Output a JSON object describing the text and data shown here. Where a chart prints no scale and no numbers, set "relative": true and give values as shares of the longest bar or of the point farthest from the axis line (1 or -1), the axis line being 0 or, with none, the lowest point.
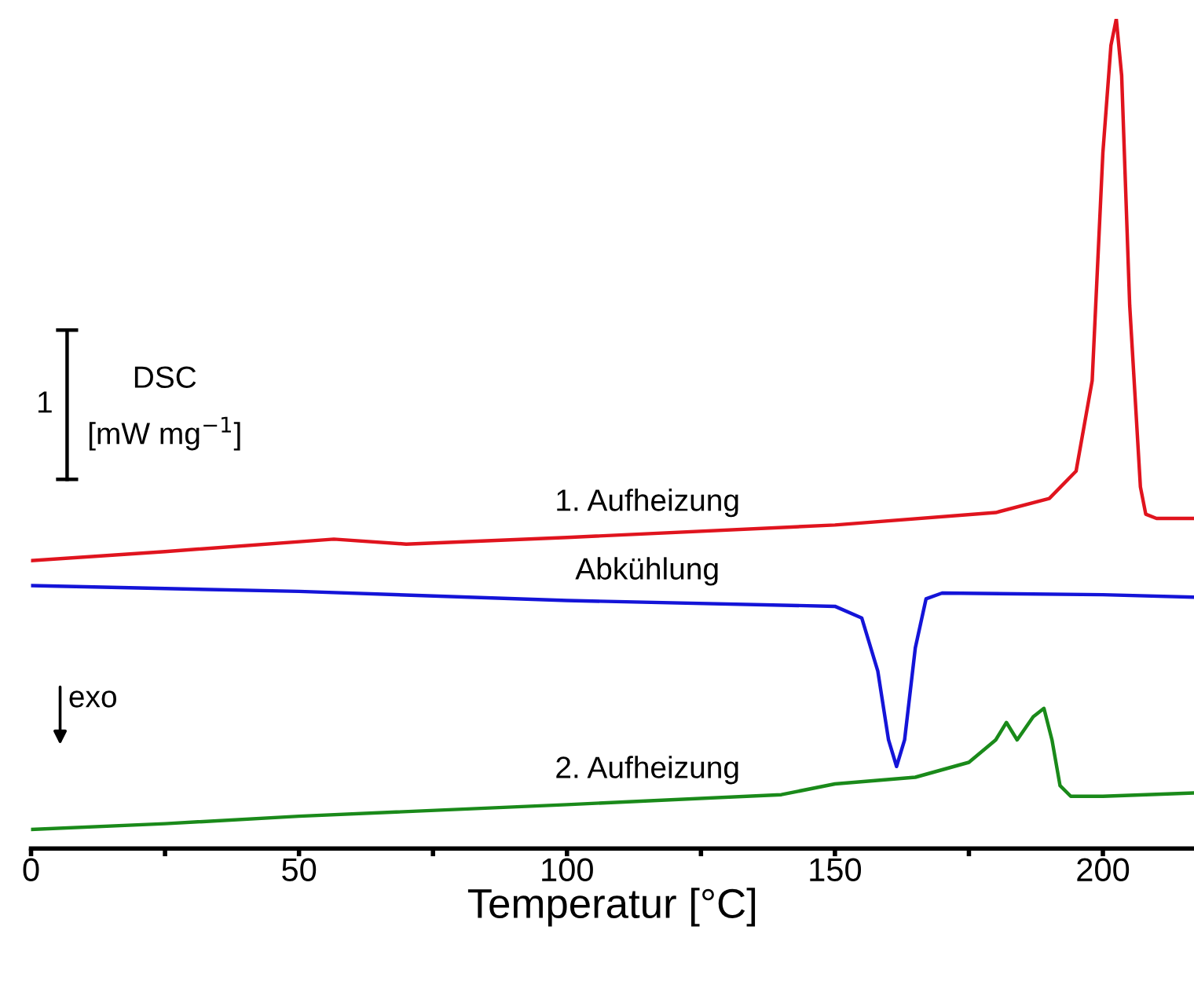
{
  "chart_data": {
    "type": "line",
    "relative": true,
    "xlabel": "Temperatur [°C]",
    "xlim": [
      0,
      217
    ],
    "xticks": [
      0,
      {
        "value": 25,
        "label": null
      },
      50,
      {
        "value": 75,
        "label": null
      },
      100,
      {
        "value": 125,
        "label": null
      },
      150,
      {
        "value": 175,
        "label": null
      },
      200
    ],
    "series": [
      {
        "name": "1. Aufheizung",
        "color": "#e0141e",
        "x": [
          0,
          25,
          56.5,
          70,
          100,
          150,
          180,
          190,
          195,
          198,
          200,
          201.5,
          202.5,
          203.5,
          205,
          207,
          208,
          210,
          217
        ],
        "values": [
          0.347,
          0.358,
          0.373,
          0.367,
          0.375,
          0.39,
          0.405,
          0.422,
          0.455,
          0.564,
          0.839,
          0.968,
          1.0,
          0.932,
          0.655,
          0.436,
          0.403,
          0.398,
          0.398
        ]
      },
      {
        "name": "Abkühlung",
        "color": "#1414d8",
        "x": [
          0,
          50,
          100,
          150,
          155,
          158,
          160,
          161.5,
          163,
          165,
          167,
          170,
          200,
          217
        ],
        "values": [
          0.317,
          0.31,
          0.299,
          0.292,
          0.278,
          0.214,
          0.131,
          0.099,
          0.131,
          0.242,
          0.301,
          0.308,
          0.306,
          0.303
        ]
      },
      {
        "name": "2. Aufheizung",
        "color": "#1a8a1a",
        "x": [
          0,
          25,
          50,
          100,
          140,
          150,
          165,
          175,
          180,
          182,
          184,
          187,
          189,
          190.5,
          192,
          194,
          200,
          217
        ],
        "values": [
          0.023,
          0.03,
          0.039,
          0.053,
          0.065,
          0.078,
          0.086,
          0.104,
          0.131,
          0.152,
          0.131,
          0.159,
          0.169,
          0.131,
          0.076,
          0.063,
          0.063,
          0.067
        ]
      }
    ],
    "annotations": [
      "1",
      "DSC",
      "[mW mg$^{−1}$]",
      "exo"
    ],
    "grid": false,
    "legend": false,
    "marker": "none",
    "line_style": "solid"
  }
}
